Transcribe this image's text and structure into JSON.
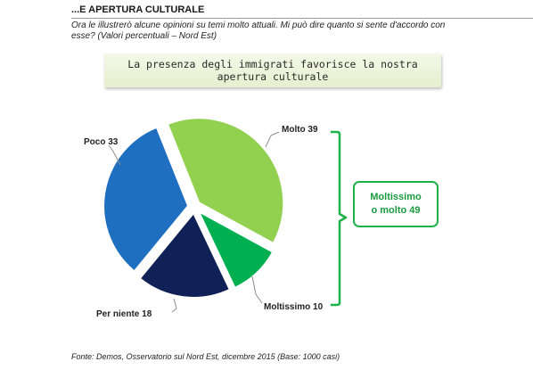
{
  "header": {
    "title": "...E APERTURA CULTURALE",
    "subtitle": "Ora le illustrerò alcune opinioni su temi molto attuali. Mi può dire quanto si sente d'accordo con esse? (Valori percentuali – Nord Est)"
  },
  "banner": {
    "text": "La presenza degli immigrati favorisce la nostra\napertura culturale"
  },
  "chart_data": {
    "type": "pie",
    "slices": [
      {
        "name": "Molto",
        "value": 39,
        "label": "Molto  39",
        "color": "#92d050"
      },
      {
        "name": "Moltissimo",
        "value": 10,
        "label": "Moltissimo  10",
        "color": "#00b050"
      },
      {
        "name": "Per niente",
        "value": 18,
        "label": "Per niente 18",
        "color": "#0f2157"
      },
      {
        "name": "Poco",
        "value": 33,
        "label": "Poco  33",
        "color": "#1f6fc1"
      }
    ],
    "callout": {
      "text": "Moltissimo\no molto 49",
      "border_color": "#1db24a"
    }
  },
  "source": "Fonte: Demos, Osservatorio sul Nord Est, dicembre 2015 (Base: 1000 casi)"
}
